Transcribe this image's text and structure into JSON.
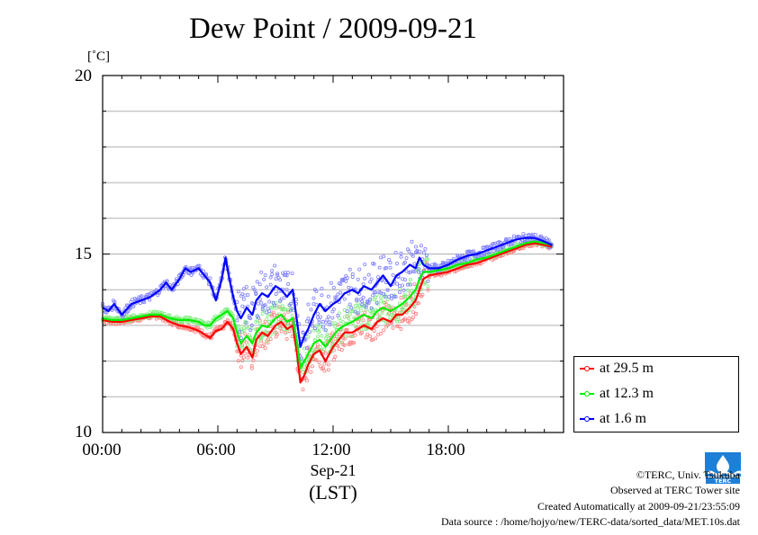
{
  "chart_data": {
    "type": "line",
    "title": "Dew Point / 2009-09-21",
    "ylabel": "[˚C]",
    "xlabel_date": "Sep-21",
    "xlabel": "(LST)",
    "ylim": [
      10,
      20
    ],
    "xlim": [
      0,
      24
    ],
    "yticks": [
      "10",
      "15",
      "20"
    ],
    "xticks": [
      {
        "hour": 0,
        "label": "00:00"
      },
      {
        "hour": 6,
        "label": "06:00"
      },
      {
        "hour": 12,
        "label": "12:00"
      },
      {
        "hour": 18,
        "label": "18:00"
      }
    ],
    "grid": "horizontal",
    "legend_position": "bottom-right",
    "series": [
      {
        "name": "at 29.5 m",
        "color": "#ff0000",
        "x": [
          0.0,
          0.5,
          1.0,
          1.5,
          2.0,
          2.5,
          3.0,
          3.5,
          4.0,
          4.5,
          5.0,
          5.3,
          5.6,
          5.9,
          6.2,
          6.5,
          6.8,
          7.0,
          7.2,
          7.5,
          7.8,
          8.0,
          8.3,
          8.6,
          9.0,
          9.3,
          9.6,
          9.9,
          10.1,
          10.3,
          10.5,
          10.7,
          11.0,
          11.3,
          11.6,
          12.0,
          12.3,
          12.6,
          13.0,
          13.3,
          13.6,
          14.0,
          14.3,
          14.6,
          15.0,
          15.3,
          15.6,
          16.0,
          16.3,
          16.5,
          16.7,
          17.0,
          17.5,
          18.0,
          18.5,
          19.0,
          19.5,
          20.0,
          20.5,
          21.0,
          21.5,
          22.0,
          22.5,
          23.0,
          23.4
        ],
        "y": [
          13.15,
          13.1,
          13.1,
          13.15,
          13.2,
          13.25,
          13.25,
          13.1,
          13.0,
          12.95,
          12.85,
          12.75,
          12.65,
          12.85,
          12.9,
          13.1,
          12.9,
          12.5,
          12.2,
          12.4,
          12.1,
          12.6,
          12.8,
          12.7,
          13.0,
          13.1,
          12.9,
          13.0,
          12.3,
          11.4,
          11.6,
          11.9,
          12.2,
          12.3,
          12.0,
          12.4,
          12.6,
          12.8,
          12.8,
          12.9,
          13.0,
          12.9,
          13.1,
          13.2,
          13.1,
          13.3,
          13.3,
          13.5,
          13.7,
          14.0,
          14.3,
          14.4,
          14.45,
          14.5,
          14.6,
          14.7,
          14.75,
          14.85,
          14.95,
          15.05,
          15.15,
          15.25,
          15.3,
          15.25,
          15.2
        ]
      },
      {
        "name": "at 12.3 m",
        "color": "#00ee00",
        "x": [
          0.0,
          0.5,
          1.0,
          1.5,
          2.0,
          2.5,
          3.0,
          3.5,
          4.0,
          4.5,
          5.0,
          5.3,
          5.6,
          5.9,
          6.2,
          6.5,
          6.8,
          7.0,
          7.2,
          7.5,
          7.8,
          8.0,
          8.3,
          8.6,
          9.0,
          9.3,
          9.6,
          9.9,
          10.1,
          10.3,
          10.5,
          10.7,
          11.0,
          11.3,
          11.6,
          12.0,
          12.3,
          12.6,
          13.0,
          13.3,
          13.6,
          14.0,
          14.3,
          14.6,
          15.0,
          15.3,
          15.6,
          16.0,
          16.3,
          16.5,
          16.7,
          17.0,
          17.5,
          18.0,
          18.5,
          19.0,
          19.5,
          20.0,
          20.5,
          21.0,
          21.5,
          22.0,
          22.5,
          23.0,
          23.4
        ],
        "y": [
          13.2,
          13.15,
          13.15,
          13.2,
          13.25,
          13.3,
          13.3,
          13.2,
          13.15,
          13.15,
          13.1,
          13.0,
          13.0,
          13.2,
          13.3,
          13.4,
          13.2,
          12.8,
          12.5,
          12.7,
          12.5,
          12.8,
          13.0,
          12.95,
          13.2,
          13.3,
          13.1,
          13.2,
          12.6,
          11.8,
          12.0,
          12.2,
          12.5,
          12.6,
          12.4,
          12.7,
          12.9,
          13.0,
          13.1,
          13.2,
          13.3,
          13.2,
          13.4,
          13.5,
          13.4,
          13.5,
          13.6,
          13.8,
          14.0,
          14.3,
          14.5,
          14.5,
          14.55,
          14.6,
          14.7,
          14.75,
          14.85,
          14.9,
          15.0,
          15.1,
          15.2,
          15.3,
          15.35,
          15.3,
          15.25
        ]
      },
      {
        "name": "at 1.6 m",
        "color": "#0000ff",
        "x": [
          0.0,
          0.3,
          0.6,
          1.0,
          1.5,
          2.0,
          2.5,
          3.0,
          3.3,
          3.6,
          4.0,
          4.3,
          4.6,
          5.0,
          5.3,
          5.6,
          5.9,
          6.2,
          6.4,
          6.6,
          6.8,
          7.0,
          7.2,
          7.5,
          7.8,
          8.0,
          8.3,
          8.6,
          9.0,
          9.3,
          9.6,
          9.9,
          10.1,
          10.3,
          10.5,
          10.7,
          11.0,
          11.3,
          11.6,
          12.0,
          12.3,
          12.6,
          13.0,
          13.3,
          13.6,
          14.0,
          14.3,
          14.6,
          15.0,
          15.3,
          15.6,
          16.0,
          16.3,
          16.5,
          16.7,
          17.0,
          17.5,
          18.0,
          18.5,
          19.0,
          19.5,
          20.0,
          20.5,
          21.0,
          21.5,
          22.0,
          22.5,
          23.0,
          23.4
        ],
        "y": [
          13.5,
          13.4,
          13.6,
          13.3,
          13.6,
          13.7,
          13.8,
          14.0,
          14.2,
          14.0,
          14.3,
          14.6,
          14.5,
          14.6,
          14.4,
          14.2,
          13.7,
          14.3,
          14.9,
          14.3,
          13.8,
          13.4,
          13.2,
          13.5,
          13.3,
          13.7,
          13.9,
          13.8,
          14.1,
          14.0,
          13.8,
          14.0,
          13.2,
          12.4,
          12.7,
          12.9,
          13.3,
          13.6,
          13.4,
          13.6,
          13.7,
          13.9,
          14.0,
          13.9,
          14.1,
          14.0,
          14.2,
          14.4,
          14.1,
          14.4,
          14.5,
          14.7,
          14.6,
          14.9,
          14.7,
          14.6,
          14.6,
          14.7,
          14.85,
          14.95,
          15.0,
          15.1,
          15.2,
          15.3,
          15.4,
          15.45,
          15.45,
          15.35,
          15.25
        ]
      }
    ]
  },
  "credits": {
    "copyright": "©TERC, Univ. Tsukuba",
    "observed": "Observed at TERC Tower site",
    "created": "Created Automatically at 2009-09-21/23:55:09",
    "source": "Data source : /home/hojyo/new/TERC-data/sorted_data/MET.10s.dat",
    "logo_text": "TERC"
  }
}
